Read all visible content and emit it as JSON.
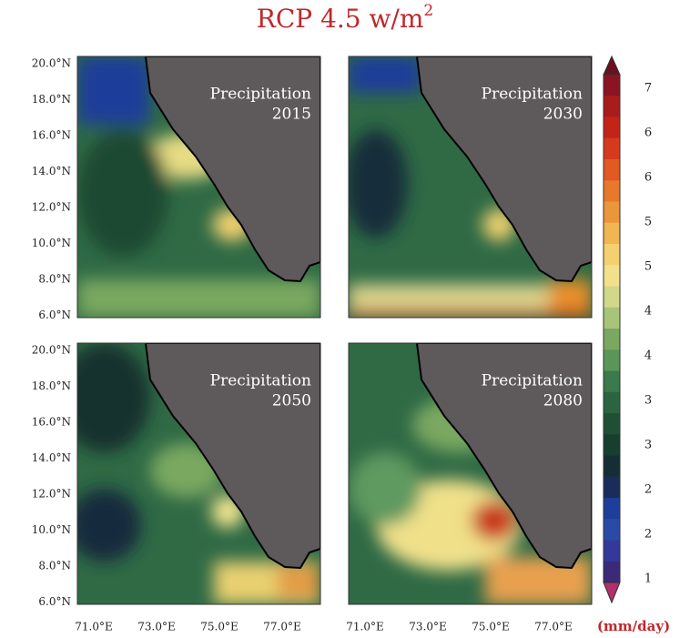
{
  "title": {
    "text": "RCP 4.5 w/m",
    "superscript": "2"
  },
  "panels": [
    {
      "label": "Precipitation",
      "year": "2015"
    },
    {
      "label": "Precipitation",
      "year": "2030"
    },
    {
      "label": "Precipitation",
      "year": "2050"
    },
    {
      "label": "Precipitation",
      "year": "2080"
    }
  ],
  "y_axis_labels": [
    "20.0°N",
    "18.0°N",
    "16.0°N",
    "14.0°N",
    "12.0°N",
    "10.0°N",
    "8.0°N",
    "6.0°N"
  ],
  "x_axis_labels": [
    "71.0°E",
    "73.0°E",
    "75.0°E",
    "77.0°E"
  ],
  "colorbar": {
    "labels": [
      "7",
      "6",
      "6",
      "5",
      "5",
      "4",
      "4",
      "3",
      "3",
      "2",
      "2",
      "1"
    ],
    "unit": "(mm/day)"
  }
}
